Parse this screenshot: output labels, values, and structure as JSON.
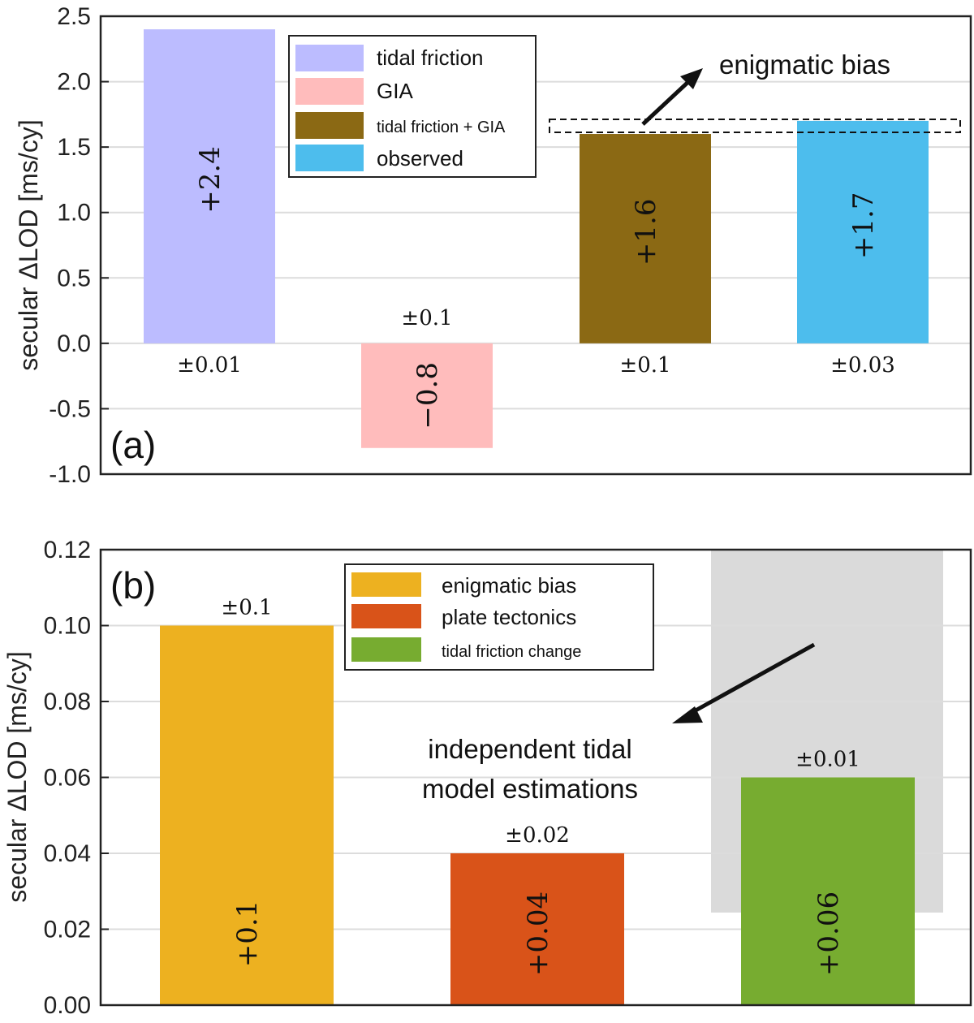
{
  "chart_data": [
    {
      "type": "bar",
      "panel": "(a)",
      "ylabel": "secular ΔLOD [ms/cy]",
      "ylim": [
        -1.0,
        2.5
      ],
      "yticks": [
        "-1.0",
        "-0.5",
        "0.0",
        "0.5",
        "1.0",
        "1.5",
        "2.0",
        "2.5"
      ],
      "ytick_values": [
        -1.0,
        -0.5,
        0.0,
        0.5,
        1.0,
        1.5,
        2.0,
        2.5
      ],
      "grid": true,
      "legend_position": "top-center",
      "series": [
        {
          "name": "tidal friction",
          "value": 2.4,
          "label": "+2.4",
          "uncertainty": "±0.01",
          "color": "#bcbcff"
        },
        {
          "name": "GIA",
          "value": -0.8,
          "label": "−0.8",
          "uncertainty": "±0.1",
          "color": "#ffbcbc"
        },
        {
          "name": "tidal friction + GIA",
          "value": 1.6,
          "label": "+1.6",
          "uncertainty": "±0.1",
          "color": "#8b6914"
        },
        {
          "name": "observed",
          "value": 1.7,
          "label": "+1.7",
          "uncertainty": "±0.03",
          "color": "#4dbded"
        }
      ],
      "annotation": "enigmatic bias"
    },
    {
      "type": "bar",
      "panel": "(b)",
      "ylabel": "secular ΔLOD [ms/cy]",
      "ylim": [
        0.0,
        0.12
      ],
      "yticks": [
        "0.00",
        "0.02",
        "0.04",
        "0.06",
        "0.08",
        "0.10",
        "0.12"
      ],
      "ytick_values": [
        0.0,
        0.02,
        0.04,
        0.06,
        0.08,
        0.1,
        0.12
      ],
      "grid": true,
      "legend_position": "top-center",
      "series": [
        {
          "name": "enigmatic bias",
          "value": 0.1,
          "label": "+0.1",
          "uncertainty": "±0.1",
          "color": "#edb120"
        },
        {
          "name": "plate tectonics",
          "value": 0.04,
          "label": "+0.04",
          "uncertainty": "±0.02",
          "color": "#d95319"
        },
        {
          "name": "tidal friction change",
          "value": 0.06,
          "label": "+0.06",
          "uncertainty": "±0.01",
          "color": "#77ac30"
        }
      ],
      "shaded_range": [
        0.024,
        0.12
      ],
      "shaded_color": "#dadada",
      "annotation_line1": "independent tidal",
      "annotation_line2": "model estimations"
    }
  ]
}
